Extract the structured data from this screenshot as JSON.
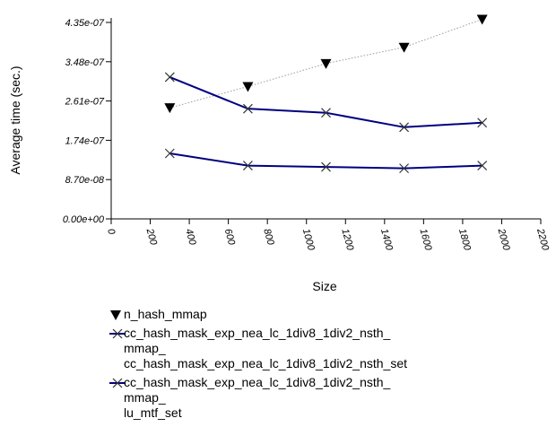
{
  "chart_data": {
    "type": "line",
    "xlabel": "Size",
    "ylabel": "Average time (sec.)",
    "x_ticks": [
      "0",
      "200",
      "400",
      "600",
      "800",
      "1000",
      "1200",
      "1400",
      "1600",
      "1800",
      "2000",
      "2200"
    ],
    "y_ticks": [
      "0.00e+00",
      "8.70e-08",
      "1.74e-07",
      "2.61e-07",
      "3.48e-07",
      "4.35e-07"
    ],
    "xlim": [
      0,
      2200
    ],
    "ylim": [
      0,
      4.35e-07
    ],
    "grid": false,
    "legend_position": "bottom-left",
    "series": [
      {
        "name": "n_hash_mmap",
        "color": "#000000",
        "marker": "triangle-down",
        "line": "dotted-grey",
        "x": [
          300,
          700,
          1100,
          1500,
          1900
        ],
        "y": [
          2.46e-07,
          2.93e-07,
          3.44e-07,
          3.8e-07,
          4.42e-07
        ]
      },
      {
        "name": "cc_hash_mask_exp_nea_lc_1div8_1div2_nsth_mmap_cc_hash_mask_exp_nea_lc_1div8_1div2_nsth_set",
        "legend_lines": [
          "cc_hash_mask_exp_nea_lc_1div8_1div2_nsth_",
          "mmap_",
          "cc_hash_mask_exp_nea_lc_1div8_1div2_nsth_set"
        ],
        "color": "#000080",
        "marker": "x",
        "line": "solid",
        "x": [
          300,
          700,
          1100,
          1500,
          1900
        ],
        "y": [
          3.14e-07,
          2.44e-07,
          2.35e-07,
          2.03e-07,
          2.13e-07
        ]
      },
      {
        "name": "cc_hash_mask_exp_nea_lc_1div8_1div2_nsth_mmap_lu_mtf_set",
        "legend_lines": [
          "cc_hash_mask_exp_nea_lc_1div8_1div2_nsth_",
          "mmap_",
          "lu_mtf_set"
        ],
        "color": "#000080",
        "marker": "x",
        "line": "solid",
        "x": [
          300,
          700,
          1100,
          1500,
          1900
        ],
        "y": [
          1.45e-07,
          1.18e-07,
          1.15e-07,
          1.12e-07,
          1.18e-07
        ]
      }
    ]
  }
}
